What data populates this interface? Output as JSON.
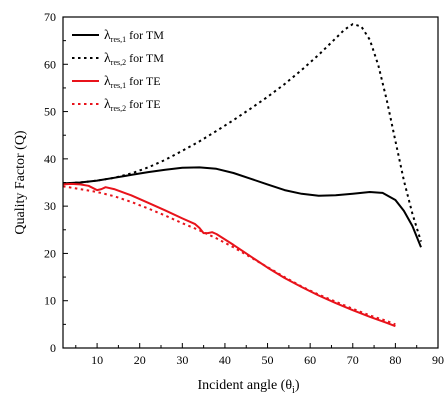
{
  "chart_data": {
    "type": "line",
    "title": "",
    "xlabel": "Incident angle (θ",
    "xlabel_sub": "i",
    "xlabel_tail": ")",
    "ylabel": "Quality Factor (Q)",
    "xlim": [
      2,
      90
    ],
    "ylim": [
      0,
      70
    ],
    "xticks": [
      10,
      20,
      30,
      40,
      50,
      60,
      70,
      80,
      90
    ],
    "yticks": [
      0,
      10,
      20,
      30,
      40,
      50,
      60,
      70
    ],
    "grid": false,
    "legend_position": "top-left",
    "series": [
      {
        "name": "λres,1 for TM",
        "legend": {
          "symbol": "λ",
          "sub": "res,1",
          "suffix": " for TM"
        },
        "color": "#000000",
        "dash": "solid",
        "x": [
          2,
          6,
          10,
          14,
          18,
          22,
          26,
          30,
          34,
          38,
          42,
          46,
          50,
          54,
          58,
          62,
          66,
          70,
          74,
          77,
          80,
          82,
          84,
          86
        ],
        "y": [
          34.8,
          35.0,
          35.4,
          36.0,
          36.6,
          37.2,
          37.7,
          38.1,
          38.2,
          37.9,
          37.0,
          35.8,
          34.6,
          33.4,
          32.6,
          32.2,
          32.3,
          32.6,
          33.0,
          32.8,
          31.3,
          29.0,
          25.8,
          21.3
        ]
      },
      {
        "name": "λres,2 for TM",
        "legend": {
          "symbol": "λ",
          "sub": "res,2",
          "suffix": " for TM"
        },
        "color": "#000000",
        "dash": "dotted",
        "x": [
          2,
          6,
          10,
          14,
          18,
          22,
          26,
          30,
          34,
          38,
          42,
          46,
          50,
          54,
          58,
          62,
          66,
          68,
          70,
          72,
          74,
          76,
          78,
          80,
          82,
          84,
          86
        ],
        "y": [
          34.8,
          35.0,
          35.4,
          36.0,
          36.9,
          38.2,
          39.8,
          41.7,
          43.7,
          45.9,
          48.2,
          50.6,
          53.1,
          55.8,
          58.8,
          62.0,
          65.5,
          67.3,
          68.5,
          68.0,
          65.2,
          59.8,
          52.3,
          43.8,
          35.4,
          28.4,
          22.5
        ]
      },
      {
        "name": "λres,1 for TE",
        "legend": {
          "symbol": "λ",
          "sub": "res,1",
          "suffix": " for TE"
        },
        "color": "#e8131b",
        "dash": "solid",
        "x": [
          2,
          4,
          6,
          8,
          10,
          11,
          12,
          14,
          18,
          22,
          26,
          30,
          33,
          34,
          35,
          36,
          37,
          38,
          42,
          46,
          50,
          54,
          58,
          62,
          66,
          70,
          74,
          78,
          80
        ],
        "y": [
          34.6,
          34.7,
          34.6,
          34.3,
          33.4,
          33.6,
          34.0,
          33.6,
          32.3,
          30.7,
          29.1,
          27.4,
          26.2,
          25.4,
          24.3,
          24.3,
          24.5,
          24.1,
          21.8,
          19.4,
          17.0,
          14.8,
          12.9,
          11.1,
          9.5,
          8.0,
          6.6,
          5.3,
          4.6
        ]
      },
      {
        "name": "λres,2 for TE",
        "legend": {
          "symbol": "λ",
          "sub": "res,2",
          "suffix": " for TE"
        },
        "color": "#e8131b",
        "dash": "dotted",
        "x": [
          2,
          6,
          10,
          14,
          18,
          22,
          26,
          30,
          34,
          38,
          42,
          46,
          50,
          54,
          58,
          62,
          66,
          70,
          74,
          78,
          80
        ],
        "y": [
          34.2,
          33.6,
          33.0,
          32.1,
          30.9,
          29.5,
          28.0,
          26.4,
          24.9,
          23.2,
          21.3,
          19.2,
          17.1,
          15.0,
          13.0,
          11.3,
          9.8,
          8.3,
          6.9,
          5.7,
          5.0
        ]
      }
    ]
  }
}
